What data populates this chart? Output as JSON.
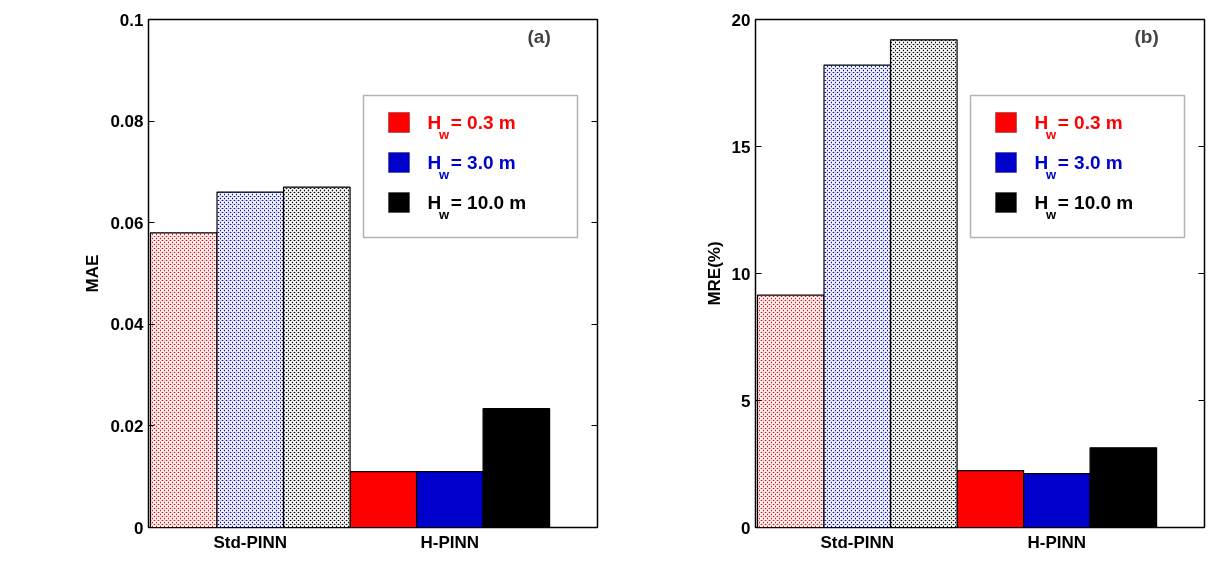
{
  "chart_data": [
    {
      "type": "bar",
      "ylabel": "MAE",
      "annotations": [
        "(a)"
      ],
      "categories": [
        "Std-PINN",
        "H-PINN"
      ],
      "ylim": [
        0,
        0.1
      ],
      "yticks": [
        0,
        0.02,
        0.04,
        0.06,
        0.08,
        0.1
      ],
      "legend": "top right",
      "series": [
        {
          "name": "H$_{w}$ = 0.3 m",
          "color": "#ff0000",
          "values": [
            0.058,
            0.011
          ]
        },
        {
          "name": "H$_{w}$ = 3.0 m",
          "color": "#0000cc",
          "values": [
            0.066,
            0.011
          ]
        },
        {
          "name": "H$_{w}$ = 10.0 m",
          "color": "#000000",
          "values": [
            0.067,
            0.0234
          ]
        }
      ]
    },
    {
      "type": "bar",
      "ylabel": "MRE(%)",
      "annotations": [
        "(b)"
      ],
      "categories": [
        "Std-PINN",
        "H-PINN"
      ],
      "ylim": [
        0,
        20
      ],
      "yticks": [
        0,
        5,
        10,
        15,
        20
      ],
      "legend": "top right",
      "series": [
        {
          "name": "H$_{w}$ = 0.3 m",
          "color": "#ff0000",
          "values": [
            9.15,
            2.24
          ]
        },
        {
          "name": "H$_{w}$ = 3.0 m",
          "color": "#0000cc",
          "values": [
            18.2,
            2.12
          ]
        },
        {
          "name": "H$_{w}$ = 10.0 m",
          "color": "#000000",
          "values": [
            19.2,
            3.14
          ]
        }
      ]
    }
  ]
}
